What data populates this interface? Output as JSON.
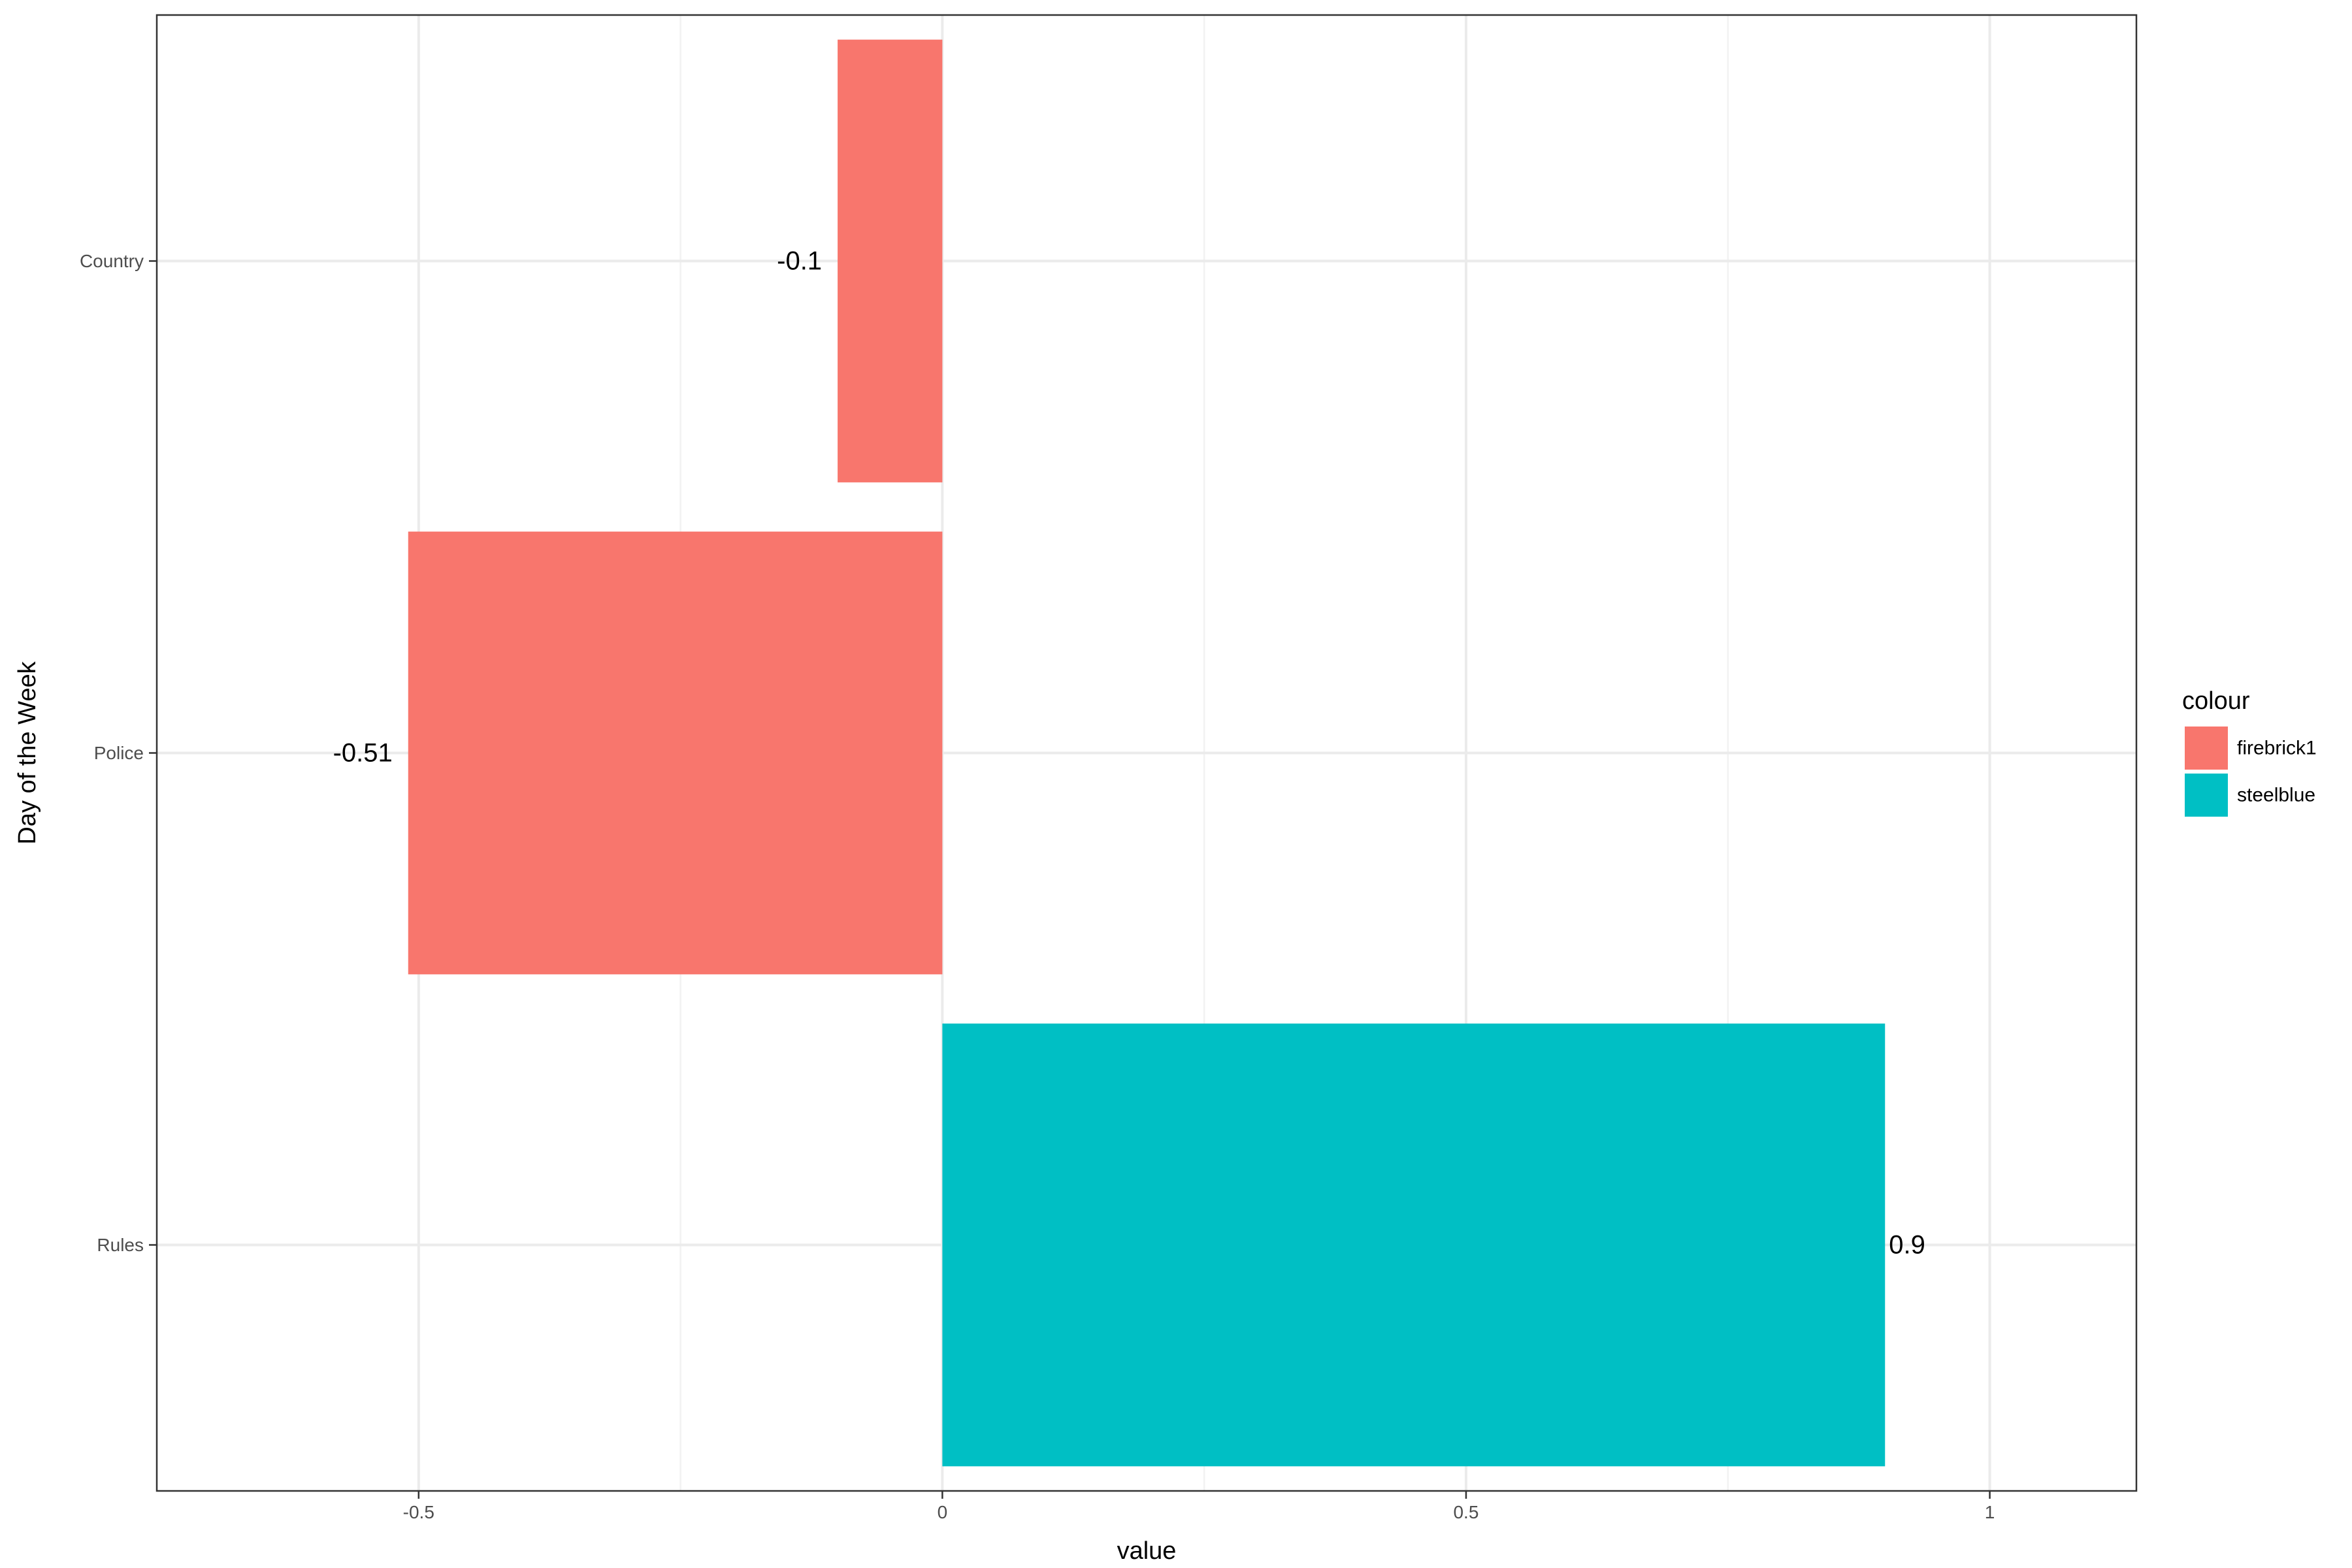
{
  "chart_data": {
    "type": "bar",
    "orientation": "horizontal",
    "categories": [
      "Rules",
      "Police",
      "Country"
    ],
    "values": [
      0.9,
      -0.51,
      -0.1
    ],
    "data_labels": [
      "0.9",
      "-0.51",
      "-0.1"
    ],
    "bar_colour_keys": [
      "steelblue",
      "firebrick1",
      "firebrick1"
    ],
    "xlabel": "value",
    "ylabel": "Day of the Week",
    "xlim": [
      -0.75,
      1.14
    ],
    "xticks": [
      -0.5,
      0,
      0.5,
      1
    ],
    "xtick_labels": [
      "-0.5",
      "0",
      "0.5",
      "1"
    ],
    "grid": true,
    "legend": {
      "title": "colour",
      "placement": "right",
      "entries": [
        {
          "label": "firebrick1",
          "color": "#F8766D"
        },
        {
          "label": "steelblue",
          "color": "#00BFC4"
        }
      ]
    },
    "colors": {
      "firebrick1": "#F8766D",
      "steelblue": "#00BFC4"
    }
  }
}
